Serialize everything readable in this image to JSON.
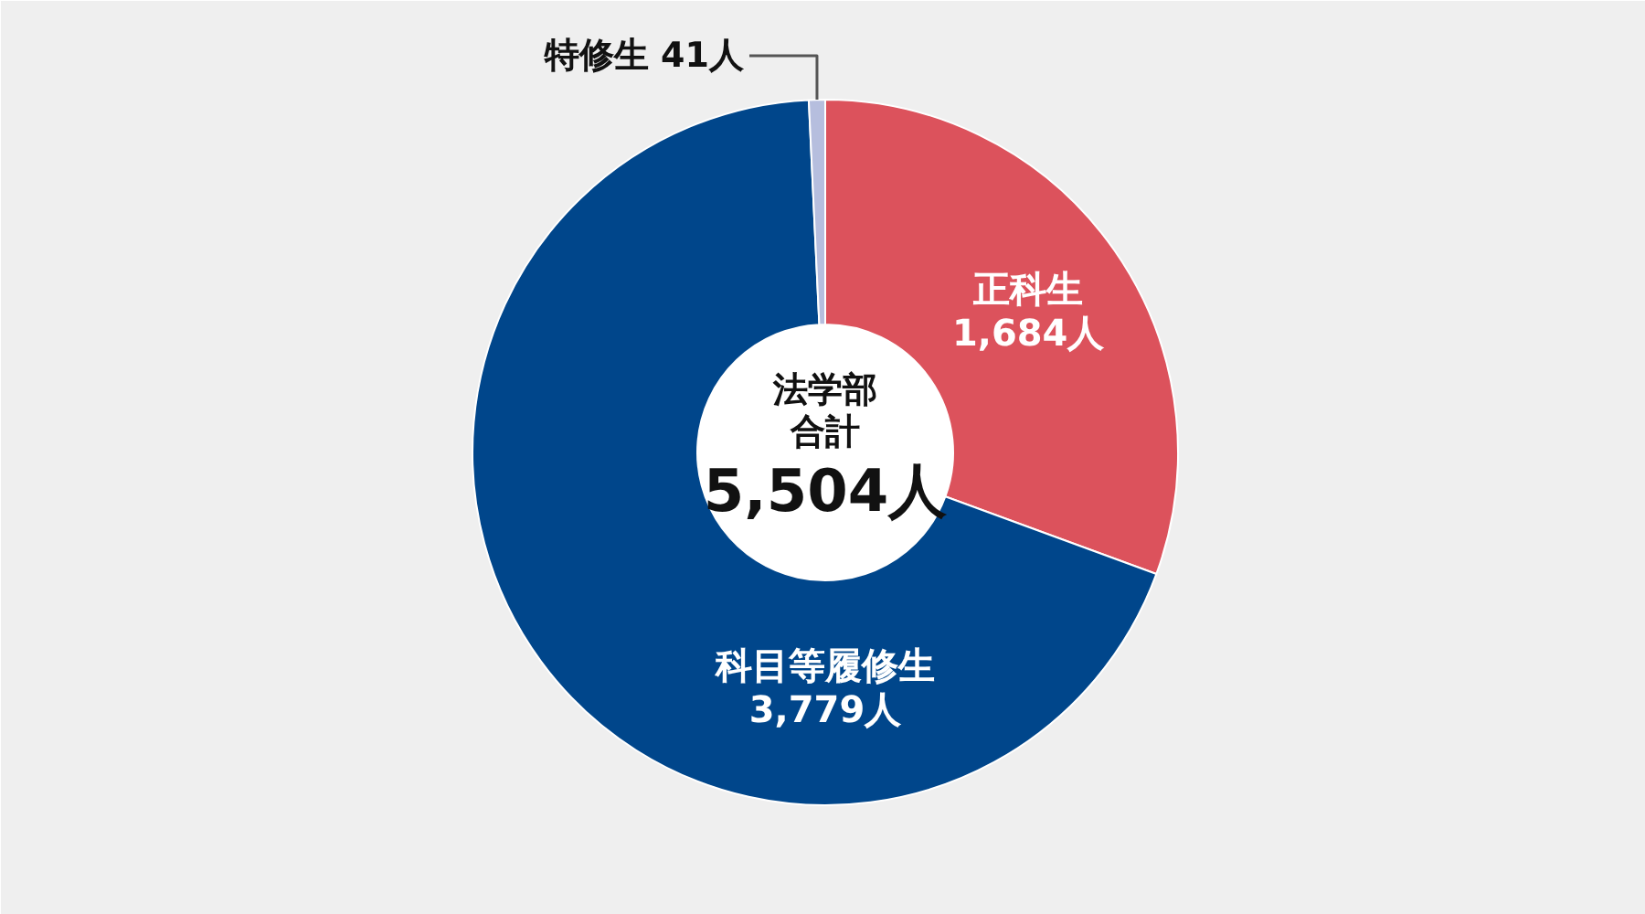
{
  "chart_data": {
    "type": "donut",
    "categories": [
      "正科生",
      "科目等履修生",
      "特修生"
    ],
    "values": [
      1684,
      3779,
      41
    ],
    "colors": [
      "#dc525c",
      "#00468b",
      "#b6bede"
    ],
    "value_labels": [
      "1,684人",
      "3,779人",
      "41人"
    ],
    "annotations": [
      "法学部",
      "合計",
      "5,504人"
    ]
  }
}
